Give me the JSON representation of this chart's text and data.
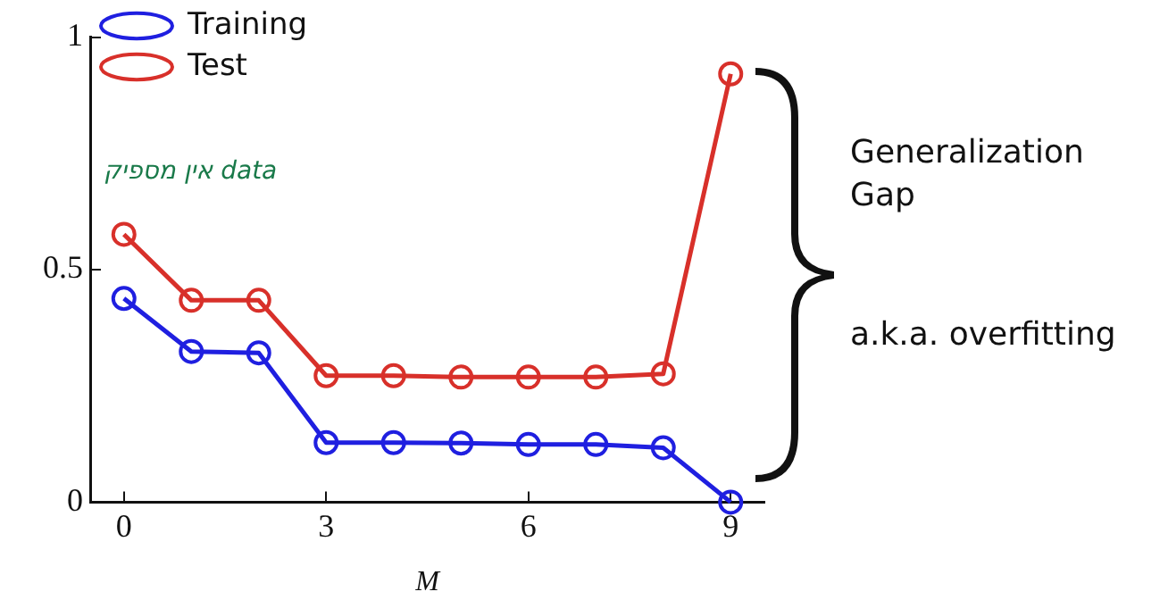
{
  "chart_data": {
    "type": "line",
    "xlabel": "M",
    "x": [
      0,
      1,
      2,
      3,
      4,
      5,
      6,
      7,
      8,
      9
    ],
    "series": [
      {
        "name": "Training",
        "color": "#1f1fe0",
        "values": [
          0.438,
          0.324,
          0.321,
          0.128,
          0.128,
          0.127,
          0.124,
          0.124,
          0.117,
          0
        ]
      },
      {
        "name": "Test",
        "color": "#d8302a",
        "values": [
          0.576,
          0.434,
          0.434,
          0.272,
          0.272,
          0.269,
          0.269,
          0.269,
          0.276,
          0.921
        ]
      }
    ],
    "xlim": [
      -0.5,
      9.5
    ],
    "xticks": [
      0,
      3,
      6,
      9
    ],
    "ylim": [
      0,
      1
    ],
    "yticks": [
      0,
      0.5,
      1
    ],
    "grid": false,
    "legend": "top left",
    "marker": "circle",
    "line_style": "solid",
    "annotations": [
      "Generalization\nGap",
      "a.k.a. overfitting",
      "אין מספיק data"
    ]
  }
}
